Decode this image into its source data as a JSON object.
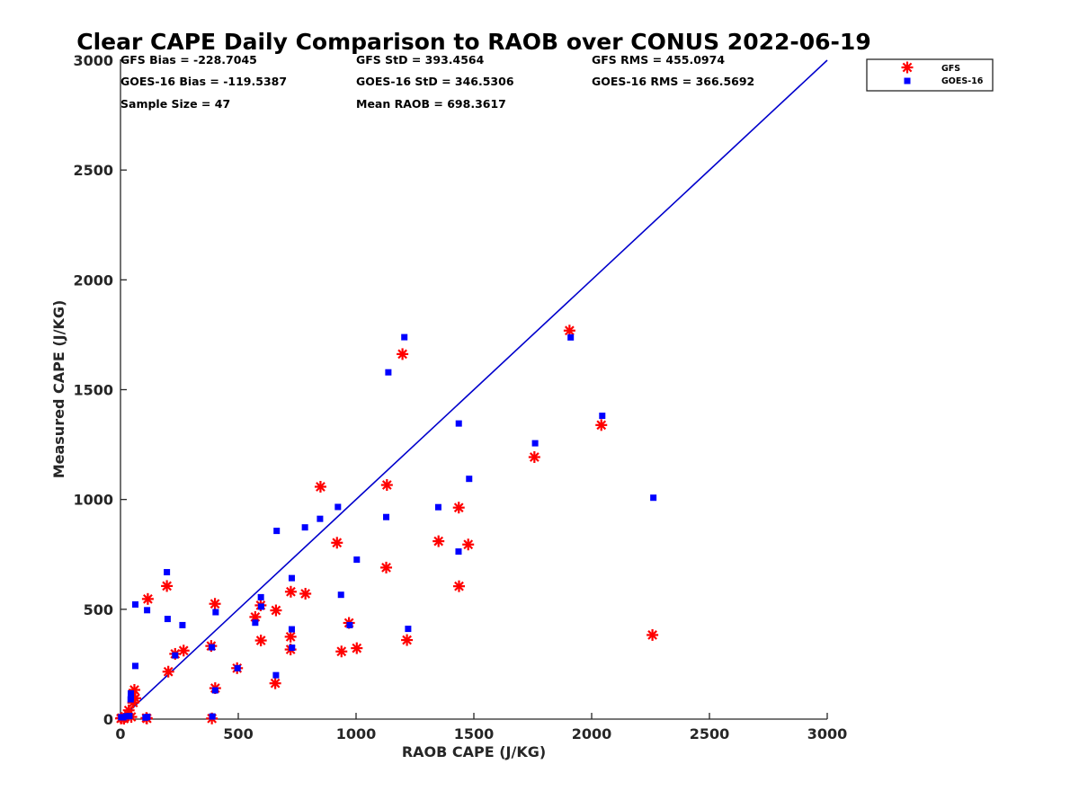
{
  "chart_data": {
    "type": "scatter",
    "title": "Clear CAPE Daily Comparison to RAOB over CONUS 2022-06-19",
    "xlabel": "RAOB CAPE (J/KG)",
    "ylabel": "Measured CAPE (J/KG)",
    "xlim": [
      0,
      3000
    ],
    "ylim": [
      0,
      3000
    ],
    "xticks": [
      "0",
      "500",
      "1000",
      "1500",
      "2000",
      "2500",
      "3000"
    ],
    "yticks": [
      "0",
      "500",
      "1000",
      "1500",
      "2000",
      "2500",
      "3000"
    ],
    "grid": false,
    "legend_position": "top-right",
    "reference_line": {
      "x": [
        0,
        3000
      ],
      "y": [
        0,
        3000
      ],
      "color": "#0000cc"
    },
    "stats": [
      [
        "GFS Bias = -228.7045",
        "GFS StD = 393.4564",
        "GFS RMS = 455.0974"
      ],
      [
        "GOES-16 Bias = -119.5387",
        "GOES-16 StD = 346.5306",
        "GOES-16 RMS = 366.5692"
      ],
      [
        "Sample Size = 47",
        "Mean RAOB = 698.3617",
        ""
      ]
    ],
    "series": [
      {
        "name": "GFS",
        "marker": "asterisk",
        "color": "#ff0000",
        "x": [
          1197,
          1906,
          2041,
          1757,
          1131,
          849,
          1436,
          1350,
          1476,
          919,
          1128,
          1437,
          2258,
          116,
          197,
          401,
          723,
          785,
          660,
          572,
          722,
          595,
          970,
          1003,
          938,
          1216,
          722,
          596,
          268,
          232,
          203,
          385,
          495,
          657,
          402,
          59,
          63,
          54,
          35,
          46,
          20,
          5,
          2,
          110,
          112,
          388,
          15
        ],
        "y": [
          1662,
          1769,
          1339,
          1193,
          1066,
          1058,
          963,
          810,
          795,
          803,
          690,
          605,
          383,
          547,
          606,
          525,
          580,
          571,
          495,
          465,
          375,
          518,
          438,
          323,
          308,
          360,
          317,
          358,
          312,
          297,
          216,
          333,
          232,
          163,
          141,
          133,
          95,
          75,
          40,
          10,
          10,
          5,
          3,
          5,
          3,
          3,
          2
        ]
      },
      {
        "name": "GOES-16",
        "marker": "square",
        "color": "#0000ff",
        "x": [
          1205,
          1137,
          1911,
          2045,
          1436,
          1760,
          1480,
          2262,
          923,
          1128,
          1349,
          847,
          783,
          663,
          1003,
          197,
          727,
          596,
          1435,
          936,
          597,
          63,
          113,
          404,
          200,
          263,
          727,
          572,
          973,
          1221,
          232,
          388,
          728,
          63,
          497,
          660,
          402,
          44,
          44,
          43,
          3,
          12,
          26,
          38,
          106,
          114,
          390
        ],
        "y": [
          1739,
          1579,
          1738,
          1381,
          1346,
          1256,
          1094,
          1008,
          966,
          920,
          965,
          912,
          873,
          857,
          726,
          669,
          642,
          555,
          763,
          566,
          512,
          522,
          496,
          487,
          456,
          428,
          409,
          439,
          428,
          411,
          290,
          327,
          325,
          242,
          232,
          200,
          131,
          117,
          98,
          90,
          9,
          8,
          13,
          14,
          7,
          10,
          12
        ]
      }
    ]
  }
}
